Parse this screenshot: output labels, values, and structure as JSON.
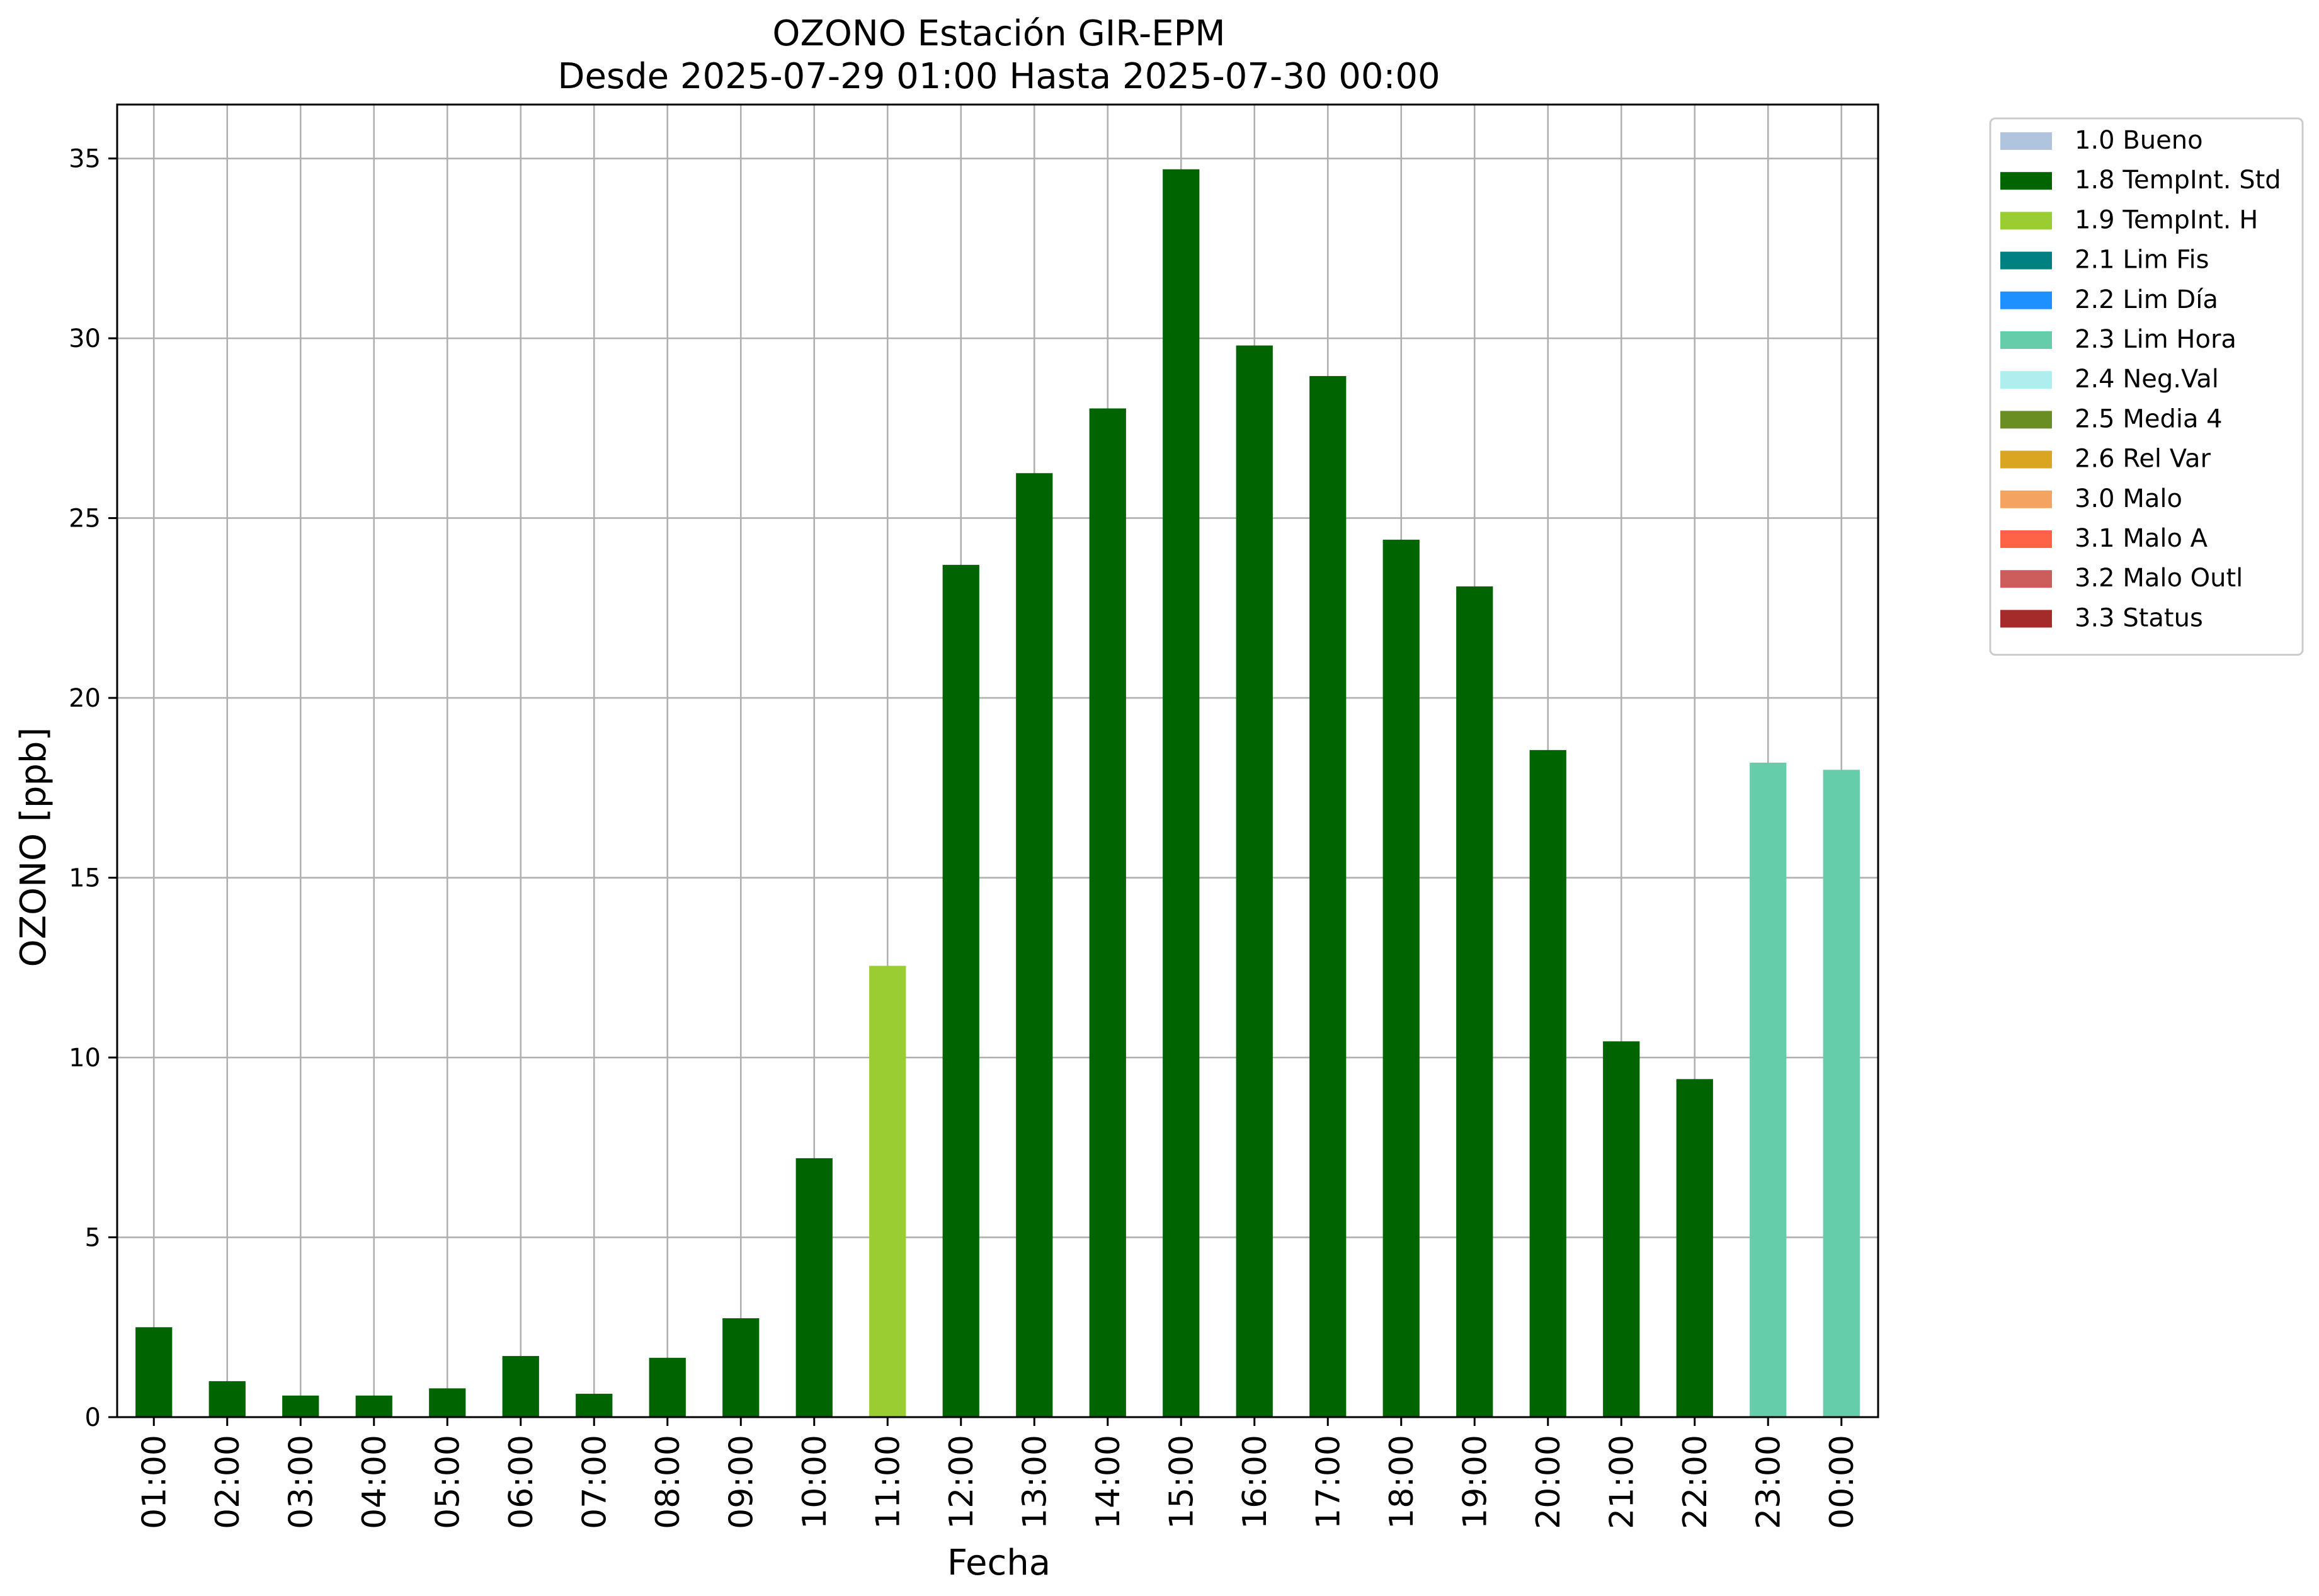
{
  "chart_data": {
    "type": "bar",
    "title": "OZONO Estación GIR-EPM",
    "subtitle": "Desde 2025-07-29 01:00 Hasta 2025-07-30 00:00",
    "xlabel": "Fecha",
    "ylabel": "OZONO [ppb]",
    "ylim": [
      0,
      36.5
    ],
    "yticks": [
      0,
      5,
      10,
      15,
      20,
      25,
      30,
      35
    ],
    "grid": true,
    "legend_position": "outside-top-right",
    "categories": [
      "01:00",
      "02:00",
      "03:00",
      "04:00",
      "05:00",
      "06:00",
      "07:00",
      "08:00",
      "09:00",
      "10:00",
      "11:00",
      "12:00",
      "13:00",
      "14:00",
      "15:00",
      "16:00",
      "17:00",
      "18:00",
      "19:00",
      "20:00",
      "21:00",
      "22:00",
      "23:00",
      "00:00"
    ],
    "values": [
      2.5,
      1.0,
      0.6,
      0.6,
      0.8,
      1.7,
      0.65,
      1.65,
      2.75,
      7.2,
      12.55,
      23.7,
      26.25,
      28.05,
      34.7,
      29.8,
      28.95,
      24.4,
      23.1,
      18.55,
      10.45,
      9.4,
      18.2,
      18.0
    ],
    "flags": [
      "1.8",
      "1.8",
      "1.8",
      "1.8",
      "1.8",
      "1.8",
      "1.8",
      "1.8",
      "1.8",
      "1.8",
      "1.9",
      "1.8",
      "1.8",
      "1.8",
      "1.8",
      "1.8",
      "1.8",
      "1.8",
      "1.8",
      "1.8",
      "1.8",
      "1.8",
      "2.3",
      "2.3"
    ],
    "legend": [
      {
        "code": "1.0",
        "label": "1.0 Bueno",
        "color": "#b0c4de"
      },
      {
        "code": "1.8",
        "label": "1.8 TempInt. Std",
        "color": "#006400"
      },
      {
        "code": "1.9",
        "label": "1.9 TempInt. H",
        "color": "#9acd32"
      },
      {
        "code": "2.1",
        "label": "2.1 Lim Fis",
        "color": "#008080"
      },
      {
        "code": "2.2",
        "label": "2.2 Lim Día",
        "color": "#1e90ff"
      },
      {
        "code": "2.3",
        "label": "2.3 Lim Hora",
        "color": "#66cdaa"
      },
      {
        "code": "2.4",
        "label": "2.4 Neg.Val",
        "color": "#afeeee"
      },
      {
        "code": "2.5",
        "label": "2.5 Media 4",
        "color": "#6b8e23"
      },
      {
        "code": "2.6",
        "label": "2.6 Rel Var",
        "color": "#daa520"
      },
      {
        "code": "3.0",
        "label": "3.0 Malo",
        "color": "#f4a460"
      },
      {
        "code": "3.1",
        "label": "3.1 Malo A",
        "color": "#ff6347"
      },
      {
        "code": "3.2",
        "label": "3.2 Malo Outl",
        "color": "#cd5c5c"
      },
      {
        "code": "3.3",
        "label": "3.3 Status",
        "color": "#a52a2a"
      }
    ]
  }
}
